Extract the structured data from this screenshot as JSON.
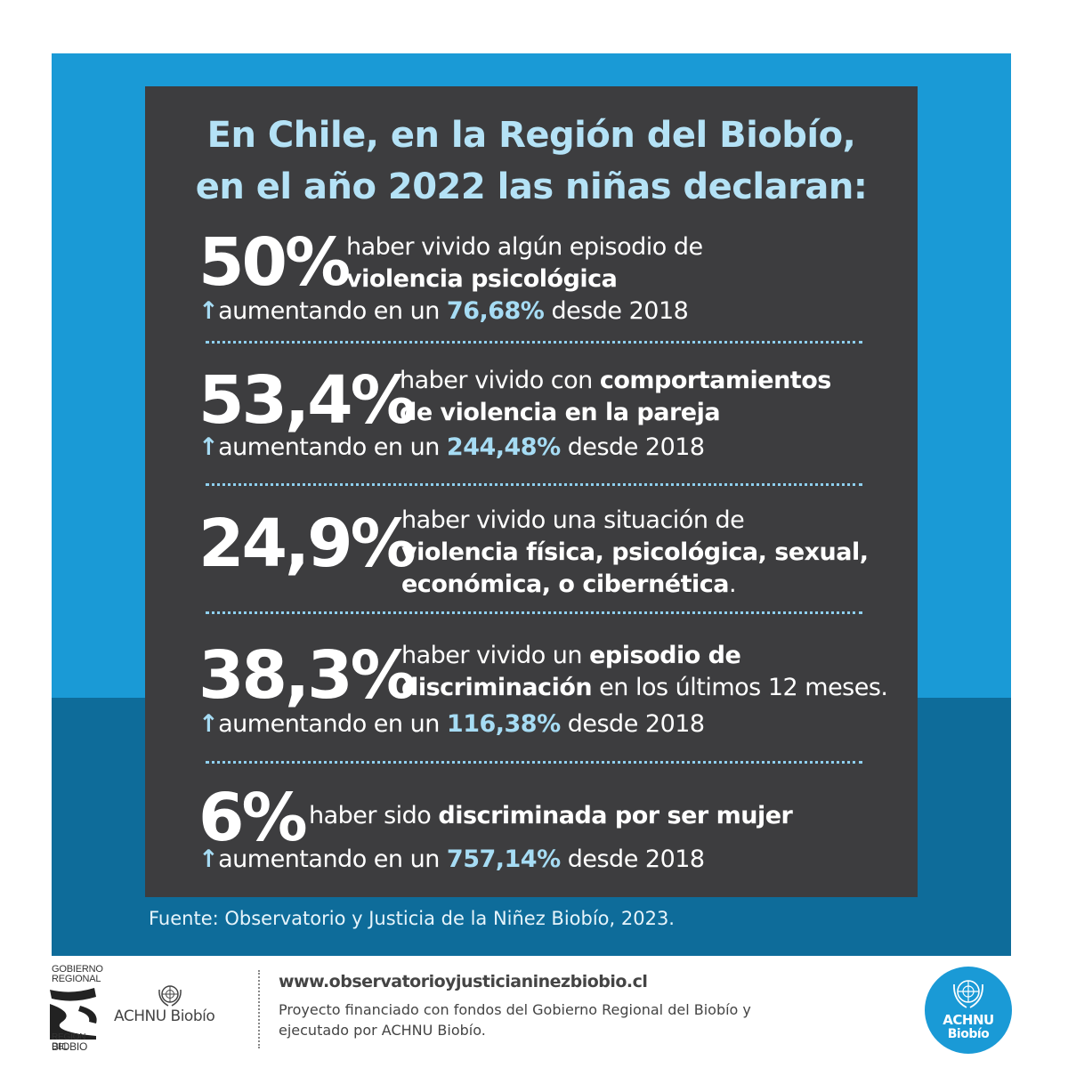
{
  "title": {
    "line1": "En Chile, en la Región del Biobío,",
    "line2": "en el año 2022 las niñas declaran:"
  },
  "stats": [
    {
      "value": "50%",
      "desc_line1_plain": "haber vivido algún episodio de",
      "desc_line2_bold": "violencia psicológica",
      "inc_prefix": "aumentando en un ",
      "inc_value": "76,68%",
      "inc_suffix": " desde 2018"
    },
    {
      "value": "53,4%",
      "desc_line1_plain": "haber vivido con ",
      "desc_line1_bold": "comportamientos",
      "desc_line2_bold": "de violencia en la pareja",
      "inc_prefix": "aumentando en un ",
      "inc_value": "244,48%",
      "inc_suffix": " desde 2018"
    },
    {
      "value": "24,9%",
      "desc_line1_plain": "haber vivido una situación de",
      "desc_line2_bold": "violencia física, psicológica, sexual,",
      "desc_line3_bold": "económica, o cibernética",
      "desc_line3_plain": "."
    },
    {
      "value": "38,3%",
      "desc_line1_plain": "haber vivido un ",
      "desc_line1_bold": "episodio de",
      "desc_line2_bold": "discriminación",
      "desc_line2_plain": " en los últimos 12 meses.",
      "inc_prefix": "aumentando en un ",
      "inc_value": "116,38%",
      "inc_suffix": " desde 2018"
    },
    {
      "value": "6%",
      "desc_line1_plain": "haber sido ",
      "desc_line1_bold": "discriminada por ser mujer",
      "inc_prefix": "aumentando en un ",
      "inc_value": "757,14%",
      "inc_suffix": " desde 2018"
    }
  ],
  "arrow": "↑",
  "source": "Fuente: Observatorio y Justicia de la Niñez Biobío, 2023.",
  "footer": {
    "gore_logo_text": [
      "GOBIERNO",
      "REGIONAL",
      "REGION DEL",
      "BIOBIO"
    ],
    "achnu_left": "ACHNU Biobío",
    "url": "www.observatorioyjusticianinezbiobio.cl",
    "funding_line1": "Proyecto financiado con fondos del Gobierno Regional del Biobío y",
    "funding_line2": "ejecutado por ACHNU Biobío.",
    "circle_line1": "ACHNU",
    "circle_line2": "Biobío"
  },
  "colors": {
    "bg_top": "#1a9ad6",
    "bg_bottom": "#0e6c9a",
    "panel": "#3d3d3f",
    "accent": "#a6dcf4"
  }
}
